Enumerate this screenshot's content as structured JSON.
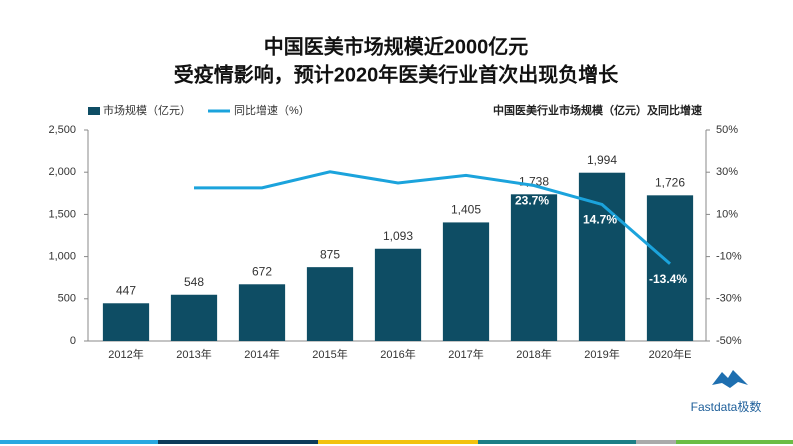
{
  "chart_data": {
    "type": "bar",
    "title": "中国医美市场规模近2000亿元",
    "subtitle": "受疫情影响，预计2020年医美行业首次出现负增长",
    "note": "中国医美行业市场规模（亿元）及同比增速",
    "brand": "Fastdata极数",
    "categories": [
      "2012年",
      "2013年",
      "2014年",
      "2015年",
      "2016年",
      "2017年",
      "2018年",
      "2019年",
      "2020年E"
    ],
    "series": [
      {
        "name": "市场规模（亿元）",
        "type": "bar",
        "color": "#0e4d64",
        "values": [
          447,
          548,
          672,
          875,
          1093,
          1405,
          1738,
          1994,
          1726
        ],
        "value_labels": [
          "447",
          "548",
          "672",
          "875",
          "1,093",
          "1,405",
          "1,738",
          "1,994",
          "1,726"
        ]
      },
      {
        "name": "同比增速（%）",
        "type": "line",
        "axis": "y2",
        "color": "#1ba3dc",
        "values": [
          null,
          22.6,
          22.6,
          30.2,
          24.9,
          28.5,
          23.7,
          14.7,
          -13.4
        ],
        "value_labels": [
          null,
          null,
          null,
          null,
          null,
          null,
          "23.7%",
          "14.7%",
          "-13.4%"
        ]
      }
    ],
    "ylim": [
      0,
      2500
    ],
    "yticks": [
      0,
      500,
      {
        "value": 1000,
        "label": "1,000"
      },
      {
        "value": 1500,
        "label": "1,500"
      },
      {
        "value": 2000,
        "label": "2,000"
      },
      {
        "value": 2500,
        "label": "2,500"
      }
    ],
    "y2lim": [
      -50,
      50
    ],
    "y2ticks": [
      {
        "value": -50,
        "label": "-50%"
      },
      {
        "value": -30,
        "label": "-30%"
      },
      {
        "value": -10,
        "label": "-10%"
      },
      {
        "value": 10,
        "label": "10%"
      },
      {
        "value": 30,
        "label": "30%"
      },
      {
        "value": 50,
        "label": "50%"
      }
    ]
  }
}
